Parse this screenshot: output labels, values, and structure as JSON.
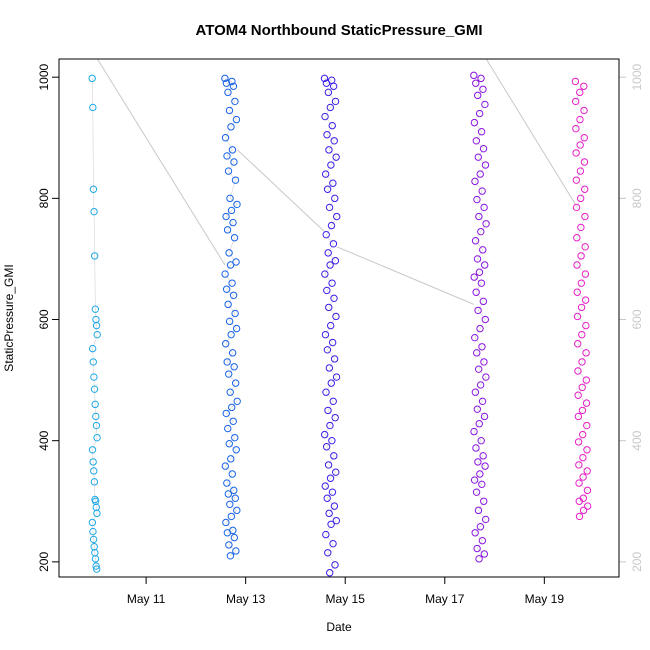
{
  "chart_data": {
    "type": "scatter",
    "title": "ATOM4 Northbound StaticPressure_GMI",
    "xlabel": "Date",
    "ylabel": "StaticPressure_GMI",
    "x_ticks": [
      "May 11",
      "May 13",
      "May 15",
      "May 17",
      "May 19"
    ],
    "xlim": [
      "2018-05-09T06:00",
      "2018-05-20T12:00"
    ],
    "ylim": [
      175,
      1030
    ],
    "y_ticks": [
      200,
      400,
      600,
      800,
      1000
    ],
    "y2_ticks": [
      200,
      400,
      600,
      800,
      1000
    ],
    "y2lim": [
      1030,
      175
    ],
    "grid": false,
    "legend": "none",
    "colors": {
      "flight1": "#1fa9e6",
      "flight2": "#1763e6",
      "flight3": "#3a1ee6",
      "flight4": "#8a14e0",
      "flight5": "#e61ec8",
      "track": "#c8c8c8"
    },
    "series": [
      {
        "x_range": [
          "2018-05-09T22:00",
          "2018-05-10T00:30"
        ],
        "color": "flight1",
        "values": [
          998,
          950,
          815,
          778,
          705,
          617,
          600,
          590,
          575,
          552,
          530,
          505,
          485,
          460,
          440,
          425,
          405,
          385,
          365,
          350,
          332,
          303,
          300,
          290,
          280,
          265,
          250,
          237,
          225,
          215,
          205,
          193,
          188
        ]
      },
      {
        "x_range": [
          "2018-05-12T14:00",
          "2018-05-12T20:00"
        ],
        "color": "flight2",
        "values": [
          998,
          993,
          990,
          985,
          975,
          960,
          945,
          930,
          918,
          900,
          880,
          870,
          860,
          845,
          830,
          800,
          790,
          780,
          770,
          760,
          748,
          735,
          710,
          695,
          690,
          675,
          660,
          650,
          640,
          625,
          610,
          597,
          585,
          575,
          560,
          545,
          530,
          522,
          510,
          495,
          480,
          465,
          455,
          445,
          432,
          420,
          405,
          395,
          385,
          370,
          358,
          345,
          330,
          318,
          312,
          305,
          295,
          285,
          275,
          265,
          252,
          248,
          240,
          228,
          218,
          210
        ]
      },
      {
        "x_range": [
          "2018-05-14T14:00",
          "2018-05-14T20:00"
        ],
        "color": "flight3",
        "values": [
          998,
          995,
          990,
          985,
          975,
          960,
          950,
          935,
          920,
          905,
          895,
          880,
          868,
          855,
          840,
          825,
          815,
          800,
          785,
          770,
          755,
          740,
          725,
          710,
          697,
          690,
          675,
          660,
          648,
          635,
          620,
          605,
          590,
          575,
          562,
          550,
          535,
          520,
          505,
          495,
          480,
          465,
          450,
          438,
          425,
          410,
          400,
          390,
          375,
          360,
          348,
          338,
          325,
          315,
          305,
          292,
          280,
          268,
          262,
          245,
          230,
          215,
          195,
          182
        ]
      },
      {
        "x_range": [
          "2018-05-17T14:00",
          "2018-05-17T20:00"
        ],
        "color": "flight4",
        "values": [
          1003,
          998,
          990,
          980,
          970,
          955,
          940,
          925,
          910,
          895,
          882,
          868,
          855,
          840,
          828,
          812,
          798,
          785,
          770,
          758,
          745,
          730,
          715,
          700,
          690,
          678,
          670,
          660,
          645,
          630,
          615,
          600,
          585,
          570,
          555,
          545,
          530,
          518,
          505,
          492,
          480,
          465,
          452,
          440,
          428,
          415,
          400,
          388,
          375,
          365,
          358,
          345,
          335,
          328,
          315,
          300,
          285,
          270,
          258,
          248,
          235,
          222,
          213,
          205
        ]
      },
      {
        "x_range": [
          "2018-05-19T15:00",
          "2018-05-19T21:00"
        ],
        "color": "flight5",
        "values": [
          993,
          985,
          975,
          960,
          945,
          930,
          915,
          900,
          888,
          875,
          860,
          845,
          830,
          815,
          800,
          785,
          770,
          752,
          735,
          720,
          705,
          690,
          675,
          660,
          645,
          632,
          620,
          605,
          590,
          575,
          560,
          545,
          530,
          515,
          500,
          488,
          475,
          462,
          450,
          440,
          425,
          410,
          398,
          385,
          372,
          360,
          350,
          340,
          330,
          318,
          305,
          300,
          292,
          285,
          275
        ]
      }
    ]
  }
}
